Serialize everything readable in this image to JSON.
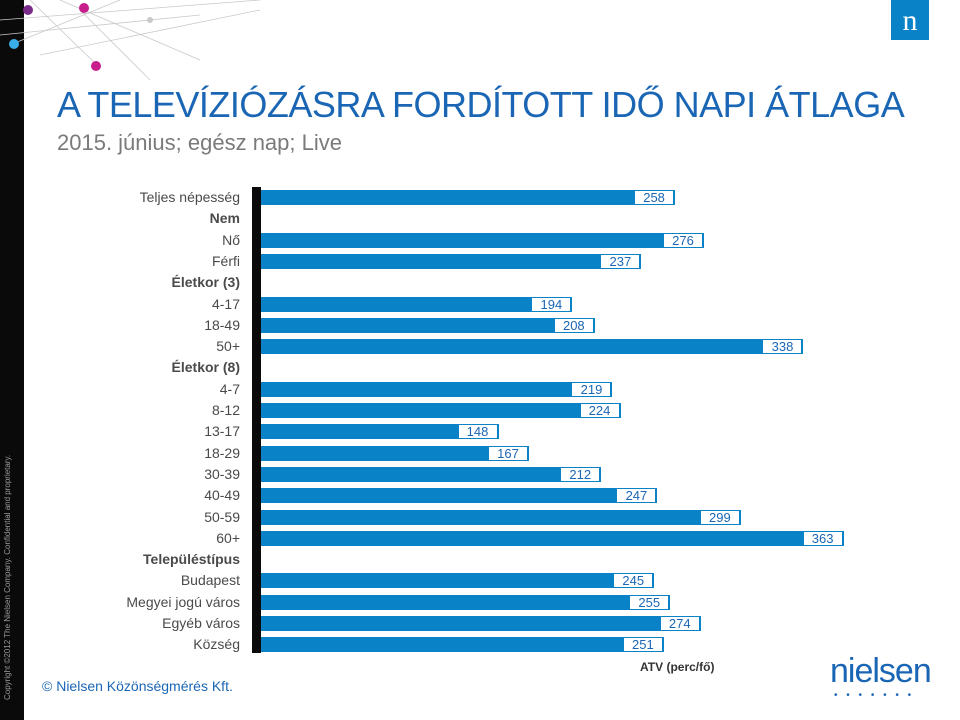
{
  "title": "A TELEVÍZIÓZÁSRA FORDÍTOTT IDŐ NAPI ÁTLAGA",
  "subtitle": "2015. június; egész nap; Live",
  "copyright_vertical": "Copyright ©2012 The Nielsen Company. Confidential and proprietary.",
  "footer_copyright": "© Nielsen Közönségmérés Kft.",
  "logo": {
    "letter": "n",
    "wordmark": "nielsen",
    "dots": "• • • • • • •"
  },
  "colors": {
    "bar": "#0a82c8",
    "title": "#1a66b5",
    "axis": "#0a0a0a"
  },
  "chart_data": {
    "type": "bar",
    "orientation": "horizontal",
    "xlabel": "ATV (perc/fő)",
    "xlim": [
      0,
      380
    ],
    "rows": [
      {
        "label": "Teljes népesség",
        "value": 258,
        "header": false
      },
      {
        "label": "Nem",
        "value": null,
        "header": true
      },
      {
        "label": "Nő",
        "value": 276,
        "header": false
      },
      {
        "label": "Férfi",
        "value": 237,
        "header": false
      },
      {
        "label": "Életkor (3)",
        "value": null,
        "header": true
      },
      {
        "label": "4-17",
        "value": 194,
        "header": false
      },
      {
        "label": "18-49",
        "value": 208,
        "header": false
      },
      {
        "label": "50+",
        "value": 338,
        "header": false
      },
      {
        "label": "Életkor (8)",
        "value": null,
        "header": true
      },
      {
        "label": "4-7",
        "value": 219,
        "header": false
      },
      {
        "label": "8-12",
        "value": 224,
        "header": false
      },
      {
        "label": "13-17",
        "value": 148,
        "header": false
      },
      {
        "label": "18-29",
        "value": 167,
        "header": false
      },
      {
        "label": "30-39",
        "value": 212,
        "header": false
      },
      {
        "label": "40-49",
        "value": 247,
        "header": false
      },
      {
        "label": "50-59",
        "value": 299,
        "header": false
      },
      {
        "label": "60+",
        "value": 363,
        "header": false
      },
      {
        "label": "Településtípus",
        "value": null,
        "header": true
      },
      {
        "label": "Budapest",
        "value": 245,
        "header": false
      },
      {
        "label": "Megyei jogú város",
        "value": 255,
        "header": false
      },
      {
        "label": "Egyéb város",
        "value": 274,
        "header": false
      },
      {
        "label": "Község",
        "value": 251,
        "header": false
      }
    ]
  }
}
